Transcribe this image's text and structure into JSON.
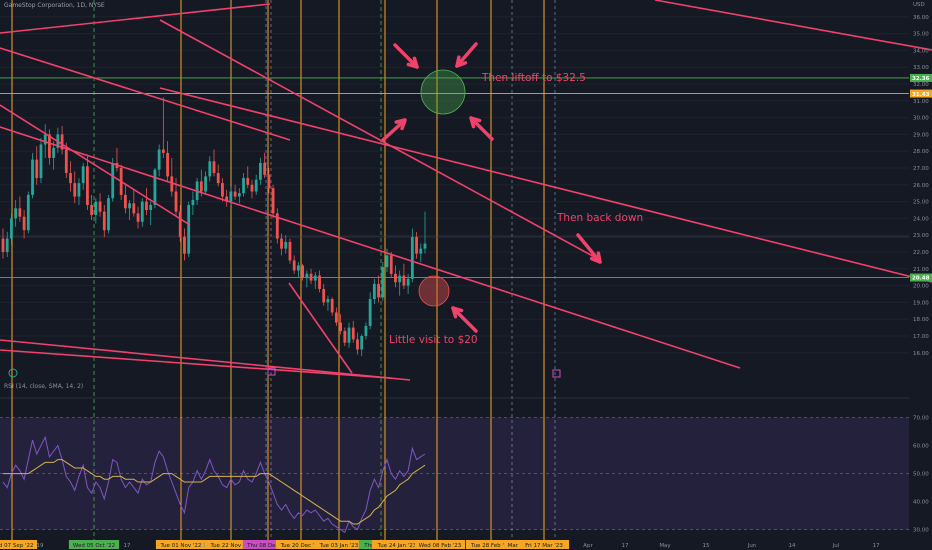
{
  "header": {
    "symbol_title": "GameStop Corporation, 1D, NYSE",
    "rsi_title": "RSI (14, close, SMA, 14, 2)"
  },
  "annotations": {
    "liftoff": "Then liftoff to $32.5",
    "back_down": "Then back down",
    "little_visit": "Little visit to $20"
  },
  "colors": {
    "background": "#151924",
    "up_candle": "#26a69a",
    "down_candle": "#ef5350",
    "trendline": "#f0426b",
    "vertical_orange": "#f5a623",
    "vertical_green": "#4caf50",
    "rsi_line": "#7e57c2",
    "rsi_ma": "#d4b24c",
    "rsi_band": "#2a2446"
  },
  "chart_data": {
    "type": "candlestick",
    "price_axis": {
      "currency": "USD",
      "ylim": [
        14.5,
        37
      ],
      "ticks": [
        16,
        17,
        18,
        19,
        20,
        21,
        22,
        23,
        24,
        25,
        26,
        27,
        28,
        29,
        30,
        31,
        32,
        33,
        34,
        35,
        36
      ],
      "price_markers": [
        {
          "label": "32.36",
          "value": 32.36
        },
        {
          "label": "31.43",
          "value": 31.43
        },
        {
          "label": "20.48",
          "value": 20.48
        }
      ]
    },
    "rsi_axis": {
      "ylim": [
        27,
        72
      ],
      "ticks": [
        30,
        40,
        50,
        60,
        70
      ],
      "overbought": 70,
      "oversold": 30
    },
    "time_axis": {
      "labels": [
        "Wed 07 Sep '22",
        "19",
        "Wed 05 Oct '22",
        "17",
        "Tue 01 Nov '22",
        "14",
        "Tue 22 Nov '22",
        "Thu 08 Dec '22",
        "Tue 20 Dec '22",
        "Tue 03 Jan '23",
        "Thu 19 Jan '23",
        "Tue 24 Jan '23",
        "Wed 08 Feb '23",
        "Tue 28 Feb '23",
        "Mar '23",
        "Fri 17 Mar '23",
        "Apr",
        "17",
        "May",
        "15",
        "Jun",
        "14",
        "Jul",
        "17"
      ]
    },
    "candles": [
      [
        22.8,
        23.4,
        21.6,
        22.0
      ],
      [
        22.0,
        23.2,
        21.7,
        22.8
      ],
      [
        22.8,
        24.3,
        22.4,
        24.0
      ],
      [
        24.0,
        25.1,
        23.5,
        24.6
      ],
      [
        24.6,
        25.3,
        23.8,
        24.1
      ],
      [
        24.1,
        24.5,
        22.8,
        23.3
      ],
      [
        23.3,
        25.6,
        23.1,
        25.4
      ],
      [
        25.4,
        27.9,
        25.2,
        27.5
      ],
      [
        27.5,
        28.3,
        26.0,
        26.4
      ],
      [
        26.4,
        28.8,
        26.1,
        28.4
      ],
      [
        28.4,
        29.6,
        27.6,
        29.0
      ],
      [
        29.0,
        29.3,
        27.2,
        27.6
      ],
      [
        27.6,
        28.6,
        26.9,
        28.2
      ],
      [
        28.2,
        29.4,
        27.9,
        29.0
      ],
      [
        29.0,
        29.5,
        27.8,
        28.1
      ],
      [
        28.1,
        28.5,
        26.4,
        26.7
      ],
      [
        26.7,
        27.4,
        25.6,
        26.1
      ],
      [
        26.1,
        26.8,
        24.9,
        25.3
      ],
      [
        25.3,
        26.4,
        24.8,
        26.1
      ],
      [
        26.1,
        27.3,
        25.7,
        27.1
      ],
      [
        27.1,
        27.8,
        24.5,
        24.8
      ],
      [
        24.8,
        25.4,
        23.9,
        24.2
      ],
      [
        24.2,
        25.2,
        23.7,
        25.0
      ],
      [
        25.0,
        25.5,
        24.1,
        24.4
      ],
      [
        24.4,
        24.8,
        22.9,
        23.3
      ],
      [
        23.3,
        25.4,
        23.1,
        25.2
      ],
      [
        25.2,
        27.6,
        25.0,
        27.3
      ],
      [
        27.3,
        28.2,
        26.8,
        27.0
      ],
      [
        27.0,
        27.2,
        25.1,
        25.4
      ],
      [
        25.4,
        26.1,
        24.3,
        24.6
      ],
      [
        24.6,
        25.1,
        23.9,
        24.9
      ],
      [
        24.9,
        25.7,
        24.1,
        24.3
      ],
      [
        24.3,
        24.7,
        23.4,
        23.8
      ],
      [
        23.8,
        25.2,
        23.5,
        25.0
      ],
      [
        25.0,
        25.8,
        24.2,
        24.5
      ],
      [
        24.5,
        25.0,
        23.6,
        24.8
      ],
      [
        24.8,
        27.0,
        24.6,
        26.9
      ],
      [
        26.9,
        28.4,
        26.5,
        28.1
      ],
      [
        28.1,
        31.2,
        27.6,
        27.9
      ],
      [
        27.9,
        28.6,
        26.2,
        26.5
      ],
      [
        26.5,
        27.6,
        25.3,
        25.6
      ],
      [
        25.6,
        26.4,
        24.1,
        24.4
      ],
      [
        24.4,
        24.8,
        22.6,
        22.9
      ],
      [
        22.9,
        23.4,
        21.5,
        21.9
      ],
      [
        21.9,
        25.0,
        21.7,
        24.8
      ],
      [
        24.8,
        25.6,
        24.2,
        25.1
      ],
      [
        25.1,
        26.4,
        24.8,
        26.2
      ],
      [
        26.2,
        26.9,
        25.3,
        25.6
      ],
      [
        25.6,
        26.8,
        25.4,
        26.5
      ],
      [
        26.5,
        27.7,
        26.2,
        27.4
      ],
      [
        27.4,
        28.1,
        26.5,
        26.7
      ],
      [
        26.7,
        27.2,
        25.9,
        26.1
      ],
      [
        26.1,
        26.4,
        25.0,
        25.3
      ],
      [
        25.3,
        25.7,
        24.7,
        25.0
      ],
      [
        25.0,
        25.9,
        24.8,
        25.6
      ],
      [
        25.6,
        26.0,
        25.1,
        25.3
      ],
      [
        25.3,
        25.8,
        24.9,
        25.5
      ],
      [
        25.5,
        26.7,
        25.3,
        26.4
      ],
      [
        26.4,
        27.1,
        25.8,
        26.0
      ],
      [
        26.0,
        26.3,
        25.2,
        25.6
      ],
      [
        25.6,
        26.6,
        25.4,
        26.3
      ],
      [
        26.3,
        27.6,
        26.0,
        27.3
      ],
      [
        27.3,
        27.9,
        26.4,
        26.6
      ],
      [
        26.6,
        27.0,
        25.5,
        25.8
      ],
      [
        25.8,
        26.0,
        24.0,
        24.3
      ],
      [
        24.3,
        24.6,
        22.5,
        22.8
      ],
      [
        22.8,
        23.1,
        21.8,
        22.2
      ],
      [
        22.2,
        23.0,
        21.9,
        22.6
      ],
      [
        22.6,
        22.8,
        21.3,
        21.5
      ],
      [
        21.5,
        21.8,
        20.7,
        20.9
      ],
      [
        20.9,
        21.4,
        20.5,
        21.2
      ],
      [
        21.2,
        21.3,
        20.3,
        20.5
      ],
      [
        20.5,
        20.9,
        19.9,
        20.7
      ],
      [
        20.7,
        21.0,
        20.1,
        20.3
      ],
      [
        20.3,
        20.8,
        19.8,
        20.6
      ],
      [
        20.6,
        20.9,
        19.6,
        19.8
      ],
      [
        19.8,
        20.1,
        18.8,
        19.0
      ],
      [
        19.0,
        19.4,
        18.5,
        19.2
      ],
      [
        19.2,
        19.3,
        18.2,
        18.4
      ],
      [
        18.4,
        18.7,
        17.6,
        17.8
      ],
      [
        17.8,
        18.3,
        17.1,
        17.3
      ],
      [
        17.3,
        17.5,
        16.4,
        16.6
      ],
      [
        16.6,
        17.8,
        16.3,
        17.5
      ],
      [
        17.5,
        17.9,
        16.6,
        16.8
      ],
      [
        16.8,
        17.2,
        15.9,
        16.2
      ],
      [
        16.2,
        17.1,
        15.8,
        17.0
      ],
      [
        17.0,
        17.8,
        16.8,
        17.6
      ],
      [
        17.6,
        19.6,
        17.4,
        19.2
      ],
      [
        19.2,
        20.4,
        18.9,
        20.1
      ],
      [
        20.1,
        20.6,
        19.0,
        19.3
      ],
      [
        19.3,
        21.4,
        19.1,
        21.1
      ],
      [
        21.1,
        22.2,
        20.8,
        21.8
      ],
      [
        21.8,
        22.0,
        20.5,
        20.7
      ],
      [
        20.7,
        21.2,
        19.9,
        20.2
      ],
      [
        20.2,
        20.9,
        19.4,
        20.6
      ],
      [
        20.6,
        21.3,
        19.8,
        20.0
      ],
      [
        20.0,
        20.7,
        19.5,
        20.4
      ],
      [
        20.4,
        23.4,
        20.2,
        22.9
      ],
      [
        22.9,
        23.2,
        21.6,
        21.9
      ],
      [
        21.9,
        22.5,
        21.4,
        22.2
      ],
      [
        22.2,
        24.4,
        21.9,
        22.5
      ]
    ],
    "rsi": [
      47,
      45,
      50,
      53,
      51,
      48,
      55,
      62,
      57,
      60,
      63,
      56,
      58,
      60,
      55,
      49,
      47,
      44,
      49,
      53,
      45,
      43,
      47,
      45,
      41,
      47,
      55,
      54,
      48,
      45,
      47,
      45,
      43,
      48,
      46,
      47,
      54,
      58,
      56,
      51,
      47,
      43,
      39,
      36,
      45,
      47,
      51,
      48,
      51,
      55,
      51,
      49,
      46,
      45,
      48,
      46,
      47,
      51,
      48,
      47,
      50,
      54,
      50,
      47,
      43,
      39,
      37,
      39,
      36,
      34,
      36,
      35,
      37,
      36,
      37,
      35,
      33,
      34,
      32,
      31,
      30,
      29,
      33,
      31,
      30,
      34,
      37,
      44,
      48,
      45,
      51,
      55,
      50,
      48,
      51,
      49,
      51,
      59,
      55,
      56,
      57
    ],
    "rsi_ma": [
      50,
      50,
      50,
      50,
      50,
      50,
      50,
      51,
      52,
      53,
      54,
      54,
      54,
      55,
      55,
      54,
      53,
      52,
      52,
      52,
      51,
      50,
      49,
      49,
      48,
      48,
      49,
      49,
      49,
      48,
      48,
      48,
      47,
      47,
      47,
      47,
      48,
      49,
      50,
      50,
      50,
      49,
      48,
      47,
      47,
      47,
      47,
      47,
      48,
      49,
      49,
      49,
      49,
      49,
      49,
      49,
      49,
      49,
      49,
      49,
      49,
      50,
      50,
      50,
      49,
      48,
      47,
      46,
      45,
      44,
      43,
      42,
      41,
      40,
      39,
      38,
      37,
      36,
      35,
      34,
      33,
      33,
      33,
      32,
      32,
      33,
      34,
      35,
      37,
      38,
      40,
      42,
      43,
      44,
      46,
      47,
      48,
      50,
      51,
      52,
      53
    ]
  }
}
